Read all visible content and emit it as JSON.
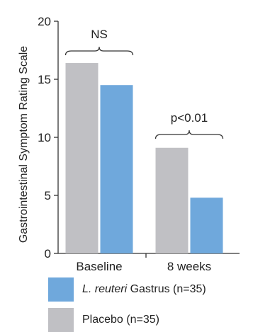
{
  "chart_data": {
    "type": "bar",
    "ylabel": "Gastrointestinal Symptom Rating Scale",
    "categories": [
      "Baseline",
      "8 weeks"
    ],
    "series": [
      {
        "name": "Placebo (n=35)",
        "values": [
          16.4,
          9.1
        ],
        "color": "#c0c0c4"
      },
      {
        "name": "L. reuteri Gastrus (n=35)",
        "values": [
          14.5,
          4.8
        ],
        "color": "#6fa8dc"
      }
    ],
    "ylim": [
      0,
      20
    ],
    "yticks": [
      0,
      5,
      10,
      15,
      20
    ],
    "grid": false,
    "annotations": [
      "NS",
      "p<0.01"
    ]
  },
  "legend": {
    "items": [
      {
        "italic": "L. reuteri",
        "rest": " Gastrus (n=35)",
        "color": "#6fa8dc"
      },
      {
        "italic": "",
        "rest": "Placebo (n=35)",
        "color": "#c0c0c4"
      }
    ]
  }
}
